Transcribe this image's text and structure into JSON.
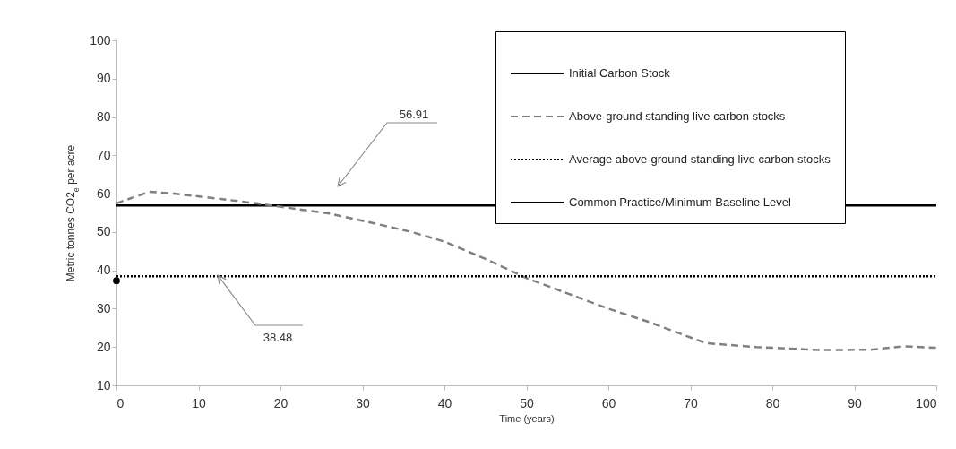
{
  "chart_data": {
    "type": "line",
    "xlabel": "Time (years)",
    "ylabel": "Metric tonnes CO2$_{e}$ per acre",
    "xlim": [
      0,
      100
    ],
    "ylim": [
      10,
      100
    ],
    "xticks": [
      0,
      10,
      20,
      30,
      40,
      50,
      60,
      70,
      80,
      90,
      100
    ],
    "yticks": [
      10,
      20,
      30,
      40,
      50,
      60,
      70,
      80,
      90,
      100
    ],
    "grid": false,
    "legend": "top right",
    "series": [
      {
        "name": "Initial Carbon Stock",
        "line_style": "solid",
        "color": "#000000",
        "x": [
          0,
          100
        ],
        "values": [
          56.91,
          56.91
        ]
      },
      {
        "name": "Above-ground standing live carbon stocks",
        "line_style": "dashed",
        "color": "#808080",
        "x": [
          0,
          4,
          7,
          12,
          17,
          22,
          26,
          32,
          36,
          40,
          45,
          50,
          55,
          60,
          65,
          70,
          72,
          78,
          86,
          92,
          96,
          100
        ],
        "values": [
          57.5,
          60.5,
          60,
          58.8,
          57.5,
          56,
          54.8,
          52,
          50,
          47.5,
          43,
          38,
          34,
          30,
          26.5,
          22.5,
          21,
          20,
          19.2,
          19.3,
          20.2,
          19.8
        ]
      },
      {
        "name": "Average above-ground standing live carbon stocks",
        "line_style": "dotted",
        "color": "#000000",
        "x": [
          0,
          100
        ],
        "values": [
          38.48,
          38.48
        ]
      },
      {
        "name": "Common Practice/Minimum Baseline Level",
        "type": "scatter",
        "marker": "circle",
        "color": "#000000",
        "x": [
          0
        ],
        "values": [
          37.3
        ]
      }
    ],
    "annotations": [
      "56.91",
      "38.48"
    ]
  }
}
